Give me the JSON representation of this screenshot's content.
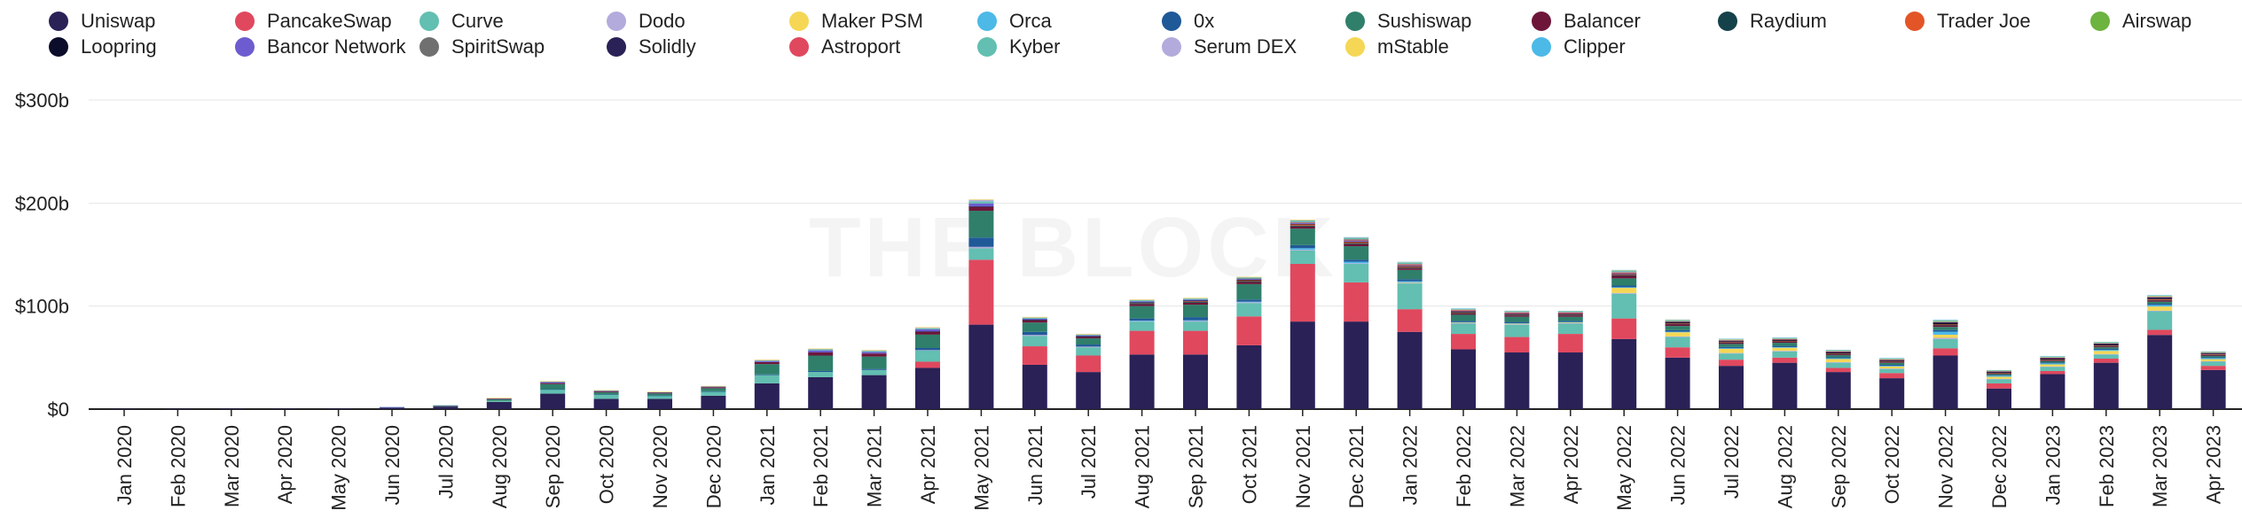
{
  "chart_data": {
    "type": "bar",
    "stacked": true,
    "title": "",
    "xlabel": "",
    "ylabel": "",
    "ylim": [
      0,
      300
    ],
    "y_ticks": [
      "$0",
      "$100b",
      "$200b",
      "$300b"
    ],
    "y_tick_values": [
      0,
      100,
      200,
      300
    ],
    "watermark": "THE BLOCK",
    "categories": [
      "Jan 2020",
      "Feb 2020",
      "Mar 2020",
      "Apr 2020",
      "May 2020",
      "Jun 2020",
      "Jul 2020",
      "Aug 2020",
      "Sep 2020",
      "Oct 2020",
      "Nov 2020",
      "Dec 2020",
      "Jan 2021",
      "Feb 2021",
      "Mar 2021",
      "Apr 2021",
      "May 2021",
      "Jun 2021",
      "Jul 2021",
      "Aug 2021",
      "Sep 2021",
      "Oct 2021",
      "Nov 2021",
      "Dec 2021",
      "Jan 2022",
      "Feb 2022",
      "Mar 2022",
      "Apr 2022",
      "May 2022",
      "Jun 2022",
      "Jul 2022",
      "Aug 2022",
      "Sep 2022",
      "Oct 2022",
      "Nov 2022",
      "Dec 2022",
      "Jan 2023",
      "Feb 2023",
      "Mar 2023",
      "Apr 2023"
    ],
    "series": [
      {
        "name": "Uniswap",
        "color": "#2a2157",
        "values": [
          0.2,
          0.3,
          0.4,
          0.4,
          0.5,
          1.5,
          2.5,
          7,
          15,
          10,
          10,
          13,
          25,
          31,
          33,
          40,
          82,
          43,
          36,
          53,
          53,
          62,
          85,
          85,
          75,
          58,
          55,
          55,
          68,
          50,
          42,
          45,
          36,
          30,
          52,
          20,
          34,
          45,
          72,
          38
        ]
      },
      {
        "name": "PancakeSwap",
        "color": "#e0485e",
        "values": [
          0,
          0,
          0,
          0,
          0,
          0,
          0,
          0,
          0,
          0,
          0,
          0,
          0,
          0,
          0,
          6,
          63,
          18,
          16,
          23,
          23,
          28,
          56,
          38,
          22,
          15,
          15,
          18,
          20,
          10,
          6,
          5,
          4,
          5,
          7,
          5,
          3,
          4,
          5,
          4
        ]
      },
      {
        "name": "Curve",
        "color": "#62bfb1",
        "values": [
          0,
          0,
          0,
          0,
          0,
          0.3,
          0.5,
          1,
          4,
          4,
          3,
          4,
          8,
          5,
          5,
          11,
          11,
          10,
          8,
          9,
          9,
          13,
          13,
          18,
          25,
          10,
          12,
          10,
          24,
          10,
          6,
          6,
          5,
          4,
          9,
          4,
          4,
          4,
          18,
          4
        ]
      },
      {
        "name": "Dodo",
        "color": "#b3abdc",
        "values": [
          0,
          0,
          0,
          0,
          0,
          0,
          0,
          0,
          0,
          0,
          0,
          0,
          0,
          0,
          0,
          0.3,
          1.5,
          1,
          0.7,
          0.7,
          1,
          0.8,
          0.7,
          0.6,
          0.6,
          0.4,
          0.4,
          0.4,
          0.7,
          0.6,
          0.5,
          0.6,
          0.6,
          0.4,
          1.2,
          0.4,
          0.4,
          0.5,
          0.6,
          0.5
        ]
      },
      {
        "name": "Maker PSM",
        "color": "#f5d755",
        "values": [
          0,
          0,
          0,
          0,
          0,
          0,
          0,
          0,
          0,
          0,
          0,
          0,
          0,
          0,
          0,
          0,
          0,
          0,
          0,
          0,
          0,
          0,
          0,
          0,
          0.5,
          0.5,
          0.5,
          0.6,
          5,
          4,
          4,
          3,
          3,
          2,
          3,
          2,
          2,
          3,
          4,
          2
        ]
      },
      {
        "name": "Orca",
        "color": "#4cb9e7",
        "values": [
          0,
          0,
          0,
          0,
          0,
          0,
          0,
          0,
          0,
          0,
          0,
          0,
          0,
          0,
          0,
          0,
          0,
          0,
          0,
          0.3,
          0.3,
          0.5,
          1.5,
          1.5,
          1,
          0.5,
          0.5,
          0.5,
          0.6,
          0.5,
          0.6,
          0.6,
          0.7,
          0.6,
          3,
          1,
          1,
          1,
          1.5,
          1
        ]
      },
      {
        "name": "0x",
        "color": "#1f5998",
        "values": [
          0,
          0,
          0,
          0,
          0,
          0,
          0,
          0,
          0.3,
          0.3,
          0.2,
          0.3,
          0.7,
          1,
          1,
          2,
          9,
          3,
          2,
          2,
          3,
          2,
          3,
          2,
          2,
          1.2,
          1.2,
          1.1,
          1.6,
          1.6,
          1.2,
          1.2,
          1,
          1,
          1.6,
          0.6,
          0.8,
          1,
          1.2,
          0.8
        ]
      },
      {
        "name": "Sushiswap",
        "color": "#2f7f6b",
        "values": [
          0,
          0,
          0,
          0,
          0,
          0,
          0.2,
          1.5,
          5,
          2,
          2,
          3,
          10,
          15,
          12,
          13,
          26,
          9,
          6,
          12,
          12,
          15,
          16,
          13,
          9,
          6,
          5,
          4,
          7,
          4,
          3,
          3,
          2,
          2,
          3,
          1,
          1.3,
          1.5,
          2,
          1.2
        ]
      },
      {
        "name": "Balancer",
        "color": "#6d163a",
        "values": [
          0,
          0,
          0,
          0,
          0,
          0,
          0.1,
          0.5,
          1,
          0.8,
          0.7,
          1,
          2,
          3,
          3,
          3,
          4,
          2,
          1.5,
          2,
          2,
          2,
          2,
          2,
          1.5,
          1.2,
          1.2,
          1.2,
          2.5,
          1.8,
          1.2,
          1.3,
          1,
          1,
          1.5,
          0.8,
          0.8,
          1,
          1.3,
          0.8
        ]
      },
      {
        "name": "Raydium",
        "color": "#15414a",
        "values": [
          0,
          0,
          0,
          0,
          0,
          0,
          0,
          0,
          0,
          0,
          0,
          0,
          0,
          0,
          0,
          0,
          0,
          0.5,
          0.5,
          1,
          1,
          1,
          1,
          1,
          0.8,
          0.5,
          0.5,
          0.5,
          0.5,
          0.4,
          0.3,
          0.3,
          0.3,
          0.3,
          0.8,
          0.2,
          0.3,
          0.3,
          0.4,
          0.3
        ]
      },
      {
        "name": "Trader Joe",
        "color": "#e35527",
        "values": [
          0,
          0,
          0,
          0,
          0,
          0,
          0,
          0,
          0,
          0,
          0,
          0,
          0,
          0,
          0,
          0,
          0,
          0,
          0,
          0.5,
          0.8,
          1,
          1.3,
          1.2,
          1,
          0.6,
          0.5,
          0.5,
          0.5,
          0.4,
          0.3,
          0.3,
          0.3,
          0.3,
          0.4,
          0.3,
          0.4,
          0.5,
          0.8,
          0.5
        ]
      },
      {
        "name": "Airswap",
        "color": "#6db33f",
        "values": [
          0,
          0,
          0,
          0,
          0,
          0,
          0,
          0,
          0,
          0,
          0,
          0,
          0,
          0,
          0,
          0,
          0,
          0,
          0,
          0,
          0,
          0,
          0,
          0,
          0,
          0,
          0,
          0,
          0,
          0,
          0,
          0,
          0,
          0,
          0,
          0,
          0,
          0,
          0,
          0
        ]
      },
      {
        "name": "Loopring",
        "color": "#0c0c2b",
        "values": [
          0,
          0,
          0,
          0,
          0,
          0,
          0,
          0,
          0,
          0,
          0,
          0,
          0,
          0,
          0,
          0.1,
          0.2,
          0.2,
          0.1,
          0.2,
          0.2,
          0.2,
          0.3,
          0.3,
          0.3,
          0.3,
          0.3,
          0.3,
          0.5,
          1,
          1,
          1,
          1.5,
          1,
          1.5,
          1,
          1.5,
          1.5,
          1.5,
          1
        ]
      },
      {
        "name": "Bancor Network",
        "color": "#6c5ccf",
        "values": [
          0,
          0,
          0,
          0,
          0,
          0.2,
          0.3,
          0.5,
          1,
          0.7,
          0.5,
          0.6,
          1,
          2,
          1.5,
          2,
          3,
          1,
          0.8,
          1,
          1,
          0.8,
          0.8,
          0.7,
          0.6,
          0.4,
          0.4,
          0.4,
          0.5,
          0.4,
          0.3,
          0.3,
          0.3,
          0.2,
          0.3,
          0.2,
          0.2,
          0.3,
          0.3,
          0.2
        ]
      },
      {
        "name": "SpiritSwap",
        "color": "#707070",
        "values": [
          0,
          0,
          0,
          0,
          0,
          0,
          0,
          0,
          0,
          0,
          0,
          0,
          0,
          0,
          0,
          0,
          0,
          0,
          0,
          0,
          0,
          0.5,
          0.6,
          0.5,
          0.3,
          0.1,
          0.1,
          0.1,
          0.1,
          0.05,
          0.05,
          0.05,
          0,
          0,
          0,
          0,
          0,
          0,
          0,
          0
        ]
      },
      {
        "name": "Solidly",
        "color": "#2a2157",
        "values": [
          0,
          0,
          0,
          0,
          0,
          0,
          0,
          0,
          0,
          0,
          0,
          0,
          0,
          0,
          0,
          0,
          0,
          0,
          0,
          0,
          0,
          0,
          0,
          0,
          0,
          0.4,
          0.3,
          0.2,
          0.2,
          0.1,
          0.1,
          0.1,
          0.1,
          0.1,
          0.1,
          0.1,
          0.1,
          0.1,
          0.1,
          0.1
        ]
      },
      {
        "name": "Astroport",
        "color": "#e0485e",
        "values": [
          0,
          0,
          0,
          0,
          0,
          0,
          0,
          0,
          0,
          0,
          0,
          0,
          0,
          0,
          0,
          0,
          0,
          0,
          0,
          0,
          0,
          0,
          0.4,
          0.8,
          1,
          1,
          1,
          1,
          1,
          0.2,
          0.1,
          0.1,
          0.1,
          0.1,
          0.1,
          0.1,
          0.1,
          0.1,
          0.1,
          0.1
        ]
      },
      {
        "name": "Kyber",
        "color": "#62bfb1",
        "values": [
          0,
          0,
          0,
          0,
          0,
          0,
          0.1,
          0.3,
          0.5,
          0.4,
          0.3,
          0.4,
          0.8,
          1,
          1,
          1,
          2,
          1,
          0.8,
          1,
          1,
          1,
          1.5,
          1.5,
          1.5,
          1,
          1,
          1,
          1.5,
          1.2,
          1,
          1,
          1,
          1,
          1.5,
          0.8,
          1,
          1,
          1.2,
          1
        ]
      },
      {
        "name": "Serum DEX",
        "color": "#b3abdc",
        "values": [
          0,
          0,
          0,
          0,
          0,
          0,
          0,
          0,
          0,
          0,
          0,
          0,
          0.2,
          0.5,
          0.6,
          0.8,
          1.5,
          0.6,
          0.4,
          0.5,
          0.5,
          0.4,
          0.5,
          0.4,
          0.3,
          0.2,
          0.2,
          0.2,
          0.2,
          0.1,
          0.05,
          0.05,
          0.05,
          0.05,
          0,
          0,
          0,
          0,
          0,
          0
        ]
      },
      {
        "name": "mStable",
        "color": "#f5d755",
        "values": [
          0,
          0,
          0,
          0,
          0,
          0,
          0,
          0.1,
          0.3,
          0.2,
          0.2,
          0.2,
          0.3,
          0.3,
          0.3,
          0.3,
          0.4,
          0.2,
          0.2,
          0.2,
          0.2,
          0.2,
          0.2,
          0.2,
          0.2,
          0.1,
          0.1,
          0.1,
          0.2,
          0.1,
          0.1,
          0.1,
          0.1,
          0.1,
          0.1,
          0.1,
          0.1,
          0.1,
          0.1,
          0.1
        ]
      },
      {
        "name": "Clipper",
        "color": "#4cb9e7",
        "values": [
          0,
          0,
          0,
          0,
          0,
          0,
          0,
          0,
          0,
          0,
          0,
          0,
          0,
          0,
          0,
          0,
          0,
          0,
          0,
          0,
          0,
          0,
          0,
          0.2,
          0.3,
          0.3,
          0.3,
          0.3,
          0.5,
          0.5,
          0.5,
          0.5,
          0.5,
          0.4,
          0.6,
          0.3,
          0.4,
          0.4,
          0.5,
          0.4
        ]
      }
    ]
  }
}
